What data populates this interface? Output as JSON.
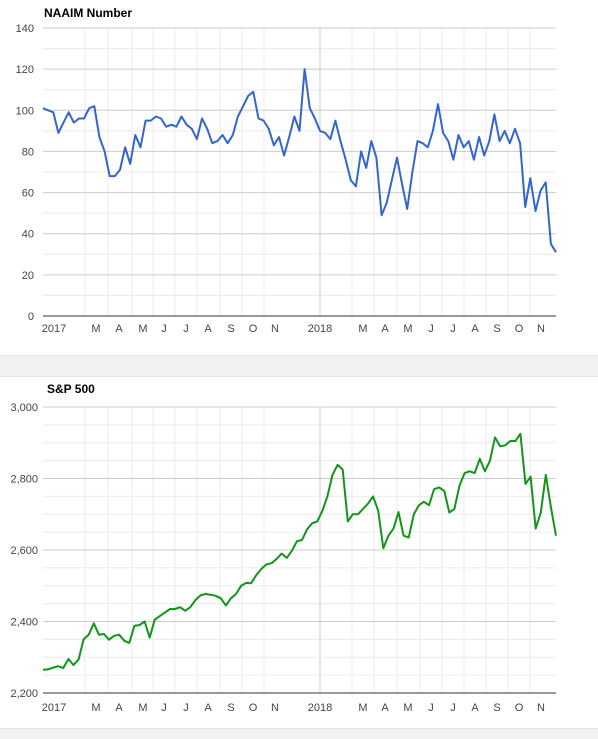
{
  "chart_data": [
    {
      "type": "line",
      "title": "NAAIM Number",
      "xlabel": "",
      "ylabel": "",
      "ylim": [
        0,
        140
      ],
      "yticks": [
        "0",
        "20",
        "40",
        "60",
        "80",
        "100",
        "120",
        "140"
      ],
      "xticks": [
        "2017",
        "M",
        "A",
        "M",
        "J",
        "J",
        "A",
        "S",
        "O",
        "N",
        "2018",
        "M",
        "A",
        "M",
        "J",
        "J",
        "A",
        "S",
        "O",
        "N"
      ],
      "grid": true,
      "color": "#3366cc",
      "x_unit": "weeks",
      "series": [
        {
          "values": [
            101,
            100,
            99,
            89,
            94,
            99,
            94,
            96,
            96,
            101,
            102,
            87,
            80,
            68,
            68,
            71,
            82,
            74,
            88,
            82,
            95,
            95,
            97,
            96,
            92,
            93,
            92,
            97,
            93,
            91,
            86,
            96,
            91,
            84,
            85,
            88,
            84,
            88,
            97,
            102,
            107,
            109,
            96,
            95,
            91,
            83,
            87,
            78,
            87,
            97,
            90,
            120,
            101,
            96,
            90,
            89,
            86,
            95,
            85,
            76,
            66,
            63,
            80,
            72,
            85,
            77,
            49,
            55,
            66,
            77,
            64,
            52,
            70,
            85,
            84,
            82,
            90,
            103,
            89,
            85,
            76,
            88,
            82,
            85,
            76,
            87,
            78,
            85,
            98,
            85,
            90,
            84,
            91,
            84,
            53,
            67,
            51,
            61,
            65,
            35,
            31
          ]
        }
      ]
    },
    {
      "type": "line",
      "title": "S&P 500",
      "xlabel": "",
      "ylabel": "",
      "ylim": [
        2200,
        3000
      ],
      "yticks": [
        "2,200",
        "2,400",
        "2,600",
        "2,800",
        "3,000"
      ],
      "xticks": [
        "2017",
        "M",
        "A",
        "M",
        "J",
        "J",
        "A",
        "S",
        "O",
        "N",
        "2018",
        "M",
        "A",
        "M",
        "J",
        "J",
        "A",
        "S",
        "O",
        "N"
      ],
      "grid": true,
      "color": "#109618",
      "x_unit": "weeks",
      "series": [
        {
          "values": [
            2265,
            2266,
            2271,
            2275,
            2270,
            2295,
            2278,
            2294,
            2350,
            2363,
            2395,
            2363,
            2365,
            2349,
            2360,
            2363,
            2346,
            2340,
            2388,
            2390,
            2400,
            2355,
            2405,
            2415,
            2425,
            2435,
            2435,
            2440,
            2430,
            2440,
            2460,
            2473,
            2477,
            2475,
            2472,
            2465,
            2445,
            2465,
            2477,
            2500,
            2508,
            2507,
            2530,
            2547,
            2560,
            2563,
            2575,
            2590,
            2578,
            2598,
            2625,
            2628,
            2658,
            2675,
            2680,
            2710,
            2750,
            2810,
            2838,
            2825,
            2680,
            2700,
            2700,
            2715,
            2730,
            2750,
            2710,
            2605,
            2640,
            2660,
            2706,
            2640,
            2635,
            2700,
            2725,
            2735,
            2725,
            2770,
            2775,
            2765,
            2705,
            2715,
            2780,
            2815,
            2820,
            2815,
            2855,
            2820,
            2850,
            2915,
            2890,
            2893,
            2905,
            2905,
            2925,
            2785,
            2805,
            2660,
            2705,
            2810,
            2720,
            2640
          ]
        }
      ]
    }
  ]
}
